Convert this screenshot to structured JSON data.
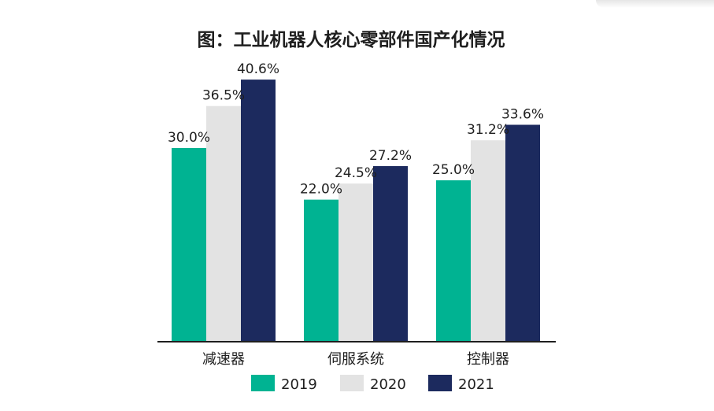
{
  "chart_data": {
    "type": "bar",
    "title": "图：工业机器人核心零部件国产化情况",
    "categories": [
      "减速器",
      "伺服系统",
      "控制器"
    ],
    "series": [
      {
        "name": "2019",
        "color": "#00b392",
        "values": [
          30.0,
          22.0,
          25.0
        ],
        "labels": [
          "30.0%",
          "22.0%",
          "25.0%"
        ]
      },
      {
        "name": "2020",
        "color": "#e3e3e3",
        "values": [
          36.5,
          24.5,
          31.2
        ],
        "labels": [
          "36.5%",
          "24.5%",
          "31.2%"
        ]
      },
      {
        "name": "2021",
        "color": "#1c2a5e",
        "values": [
          40.6,
          27.2,
          33.6
        ],
        "labels": [
          "40.6%",
          "27.2%",
          "33.6%"
        ]
      }
    ],
    "ylim": [
      0,
      42
    ],
    "grid": false,
    "legend": "bottom-center",
    "xlabel": "",
    "ylabel": ""
  }
}
